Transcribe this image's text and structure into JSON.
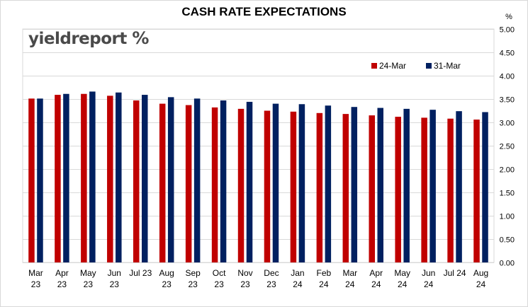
{
  "colors": {
    "series_24mar": "#c00000",
    "series_31mar": "#002060"
  },
  "logo": {
    "text_main": "yieldreport ",
    "text_symbol": "%"
  },
  "chart_data": {
    "type": "bar",
    "title": "CASH RATE EXPECTATIONS",
    "ylabel": "%",
    "ylim": [
      0,
      5
    ],
    "yticks": [
      "0.00",
      "0.50",
      "1.00",
      "1.50",
      "2.00",
      "2.50",
      "3.00",
      "3.50",
      "4.00",
      "4.50",
      "5.00"
    ],
    "legend_position": "top-right",
    "grid": true,
    "categories": [
      [
        "Mar",
        "23"
      ],
      [
        "Apr",
        "23"
      ],
      [
        "May",
        "23"
      ],
      [
        "Jun",
        "23"
      ],
      [
        "Jul 23",
        ""
      ],
      [
        "Aug",
        "23"
      ],
      [
        "Sep",
        "23"
      ],
      [
        "Oct",
        "23"
      ],
      [
        "Nov",
        "23"
      ],
      [
        "Dec",
        "23"
      ],
      [
        "Jan",
        "24"
      ],
      [
        "Feb",
        "24"
      ],
      [
        "Mar",
        "24"
      ],
      [
        "Apr",
        "24"
      ],
      [
        "May",
        "24"
      ],
      [
        "Jun",
        "24"
      ],
      [
        "Jul 24",
        ""
      ],
      [
        "Aug",
        "24"
      ]
    ],
    "series": [
      {
        "name": "24-Mar",
        "values": [
          3.51,
          3.59,
          3.61,
          3.57,
          3.47,
          3.4,
          3.37,
          3.32,
          3.29,
          3.25,
          3.23,
          3.2,
          3.18,
          3.15,
          3.12,
          3.1,
          3.08,
          3.06
        ]
      },
      {
        "name": "31-Mar",
        "values": [
          3.51,
          3.61,
          3.66,
          3.64,
          3.59,
          3.54,
          3.51,
          3.47,
          3.44,
          3.4,
          3.39,
          3.36,
          3.33,
          3.31,
          3.29,
          3.27,
          3.24,
          3.22
        ]
      }
    ]
  }
}
